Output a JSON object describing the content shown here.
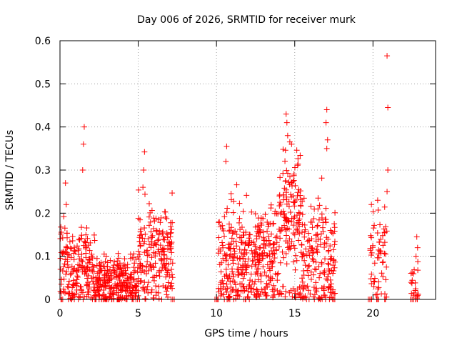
{
  "chart_data": {
    "type": "scatter",
    "title": "Day 006 of 2026, SRMTID for receiver murk",
    "xlabel": "GPS time / hours",
    "ylabel": "SRMTID / TECUs",
    "xlim": [
      0,
      24
    ],
    "ylim": [
      0,
      0.6
    ],
    "x_ticks": [
      0,
      5,
      10,
      15,
      20
    ],
    "x_tick_labels": [
      "0",
      "5",
      "10",
      "15",
      "20"
    ],
    "y_ticks": [
      0,
      0.1,
      0.2,
      0.3,
      0.4,
      0.5,
      0.6
    ],
    "y_tick_labels": [
      "0",
      "0.1",
      "0.2",
      "0.3",
      "0.4",
      "0.5",
      "0.6"
    ],
    "grid": true,
    "marker": "plus",
    "color": "#ff0000",
    "clusters": [
      {
        "x_start": 0.0,
        "x_end": 2.3,
        "y_mean": 0.075,
        "y_spread": 0.06,
        "count": 210
      },
      {
        "x_start": 2.3,
        "x_end": 5.0,
        "y_mean": 0.045,
        "y_spread": 0.035,
        "count": 260
      },
      {
        "x_start": 5.0,
        "x_end": 7.2,
        "y_mean": 0.12,
        "y_spread": 0.07,
        "count": 200
      },
      {
        "x_start": 10.1,
        "x_end": 12.2,
        "y_mean": 0.1,
        "y_spread": 0.075,
        "count": 200
      },
      {
        "x_start": 12.2,
        "x_end": 14.0,
        "y_mean": 0.11,
        "y_spread": 0.06,
        "count": 170
      },
      {
        "x_start": 14.0,
        "x_end": 15.4,
        "y_mean": 0.2,
        "y_spread": 0.08,
        "count": 150
      },
      {
        "x_start": 15.4,
        "x_end": 17.6,
        "y_mean": 0.11,
        "y_spread": 0.08,
        "count": 190
      },
      {
        "x_start": 19.8,
        "x_end": 20.9,
        "y_mean": 0.1,
        "y_spread": 0.06,
        "count": 60
      },
      {
        "x_start": 22.4,
        "x_end": 22.9,
        "y_mean": 0.05,
        "y_spread": 0.04,
        "count": 22
      }
    ],
    "points": [
      [
        1.55,
        0.4
      ],
      [
        1.5,
        0.36
      ],
      [
        1.45,
        0.3
      ],
      [
        0.35,
        0.27
      ],
      [
        0.4,
        0.22
      ],
      [
        5.4,
        0.342
      ],
      [
        5.35,
        0.3
      ],
      [
        5.3,
        0.26
      ],
      [
        10.65,
        0.355
      ],
      [
        10.6,
        0.32
      ],
      [
        14.45,
        0.43
      ],
      [
        14.5,
        0.41
      ],
      [
        14.55,
        0.38
      ],
      [
        14.8,
        0.36
      ],
      [
        17.05,
        0.44
      ],
      [
        17.0,
        0.41
      ],
      [
        17.1,
        0.37
      ],
      [
        17.05,
        0.35
      ],
      [
        20.9,
        0.565
      ],
      [
        20.95,
        0.445
      ],
      [
        20.95,
        0.3
      ],
      [
        20.9,
        0.25
      ],
      [
        20.3,
        0.23
      ],
      [
        19.9,
        0.22
      ],
      [
        22.8,
        0.145
      ],
      [
        22.85,
        0.12
      ],
      [
        22.75,
        0.1
      ],
      [
        2.5,
        0.0
      ],
      [
        2.65,
        0.0
      ],
      [
        3.3,
        0.0
      ],
      [
        6.5,
        0.0
      ],
      [
        7.1,
        0.0
      ],
      [
        7.2,
        0.0
      ],
      [
        7.3,
        0.0
      ],
      [
        9.9,
        0.0
      ],
      [
        10.0,
        0.0
      ],
      [
        10.05,
        0.0
      ],
      [
        17.5,
        0.0
      ],
      [
        19.7,
        0.0
      ],
      [
        19.8,
        0.0
      ],
      [
        19.9,
        0.0
      ],
      [
        20.3,
        0.0
      ],
      [
        20.35,
        0.0
      ],
      [
        20.75,
        0.0
      ],
      [
        20.8,
        0.0
      ],
      [
        22.4,
        0.0
      ],
      [
        22.5,
        0.0
      ],
      [
        22.6,
        0.0
      ],
      [
        22.7,
        0.0
      ]
    ]
  }
}
